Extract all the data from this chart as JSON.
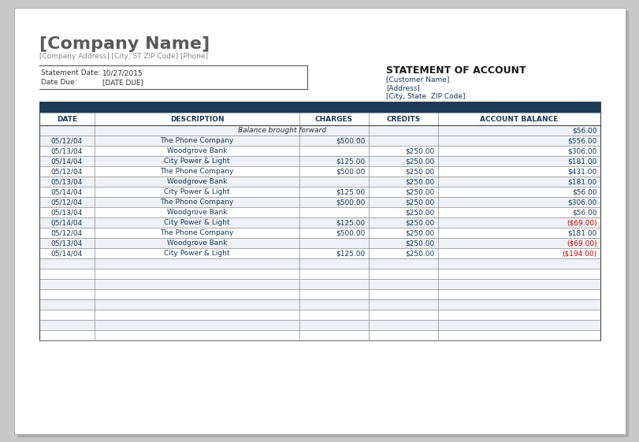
{
  "company_name": "[Company Name]",
  "company_address": "[Company Address] [City, ST ZIP Code] [Phone]",
  "statement_title": "STATEMENT OF ACCOUNT",
  "statement_date_label": "Statement Date:",
  "statement_date_value": "10/27/2015",
  "date_due_label": "Date Due:",
  "date_due_value": "[DATE DUE]",
  "customer_name": "[Customer Name]",
  "address": "[Address]",
  "city_state": "[City, State  ZIP Code]",
  "header_bg": "#1b3a57",
  "col_headers": [
    "DATE",
    "DESCRIPTION",
    "CHARGES",
    "CREDITS",
    "ACCOUNT BALANCE"
  ],
  "balance_forward_label": "Balance brought forward",
  "balance_forward_value": "$56.00",
  "rows": [
    {
      "date": "05/12/04",
      "desc": "The Phone Company",
      "charges": "$500.00",
      "credits": "",
      "balance": "$556.00",
      "neg": false
    },
    {
      "date": "05/13/04",
      "desc": "Woodgrove Bank",
      "charges": "",
      "credits": "$250.00",
      "balance": "$306.00",
      "neg": false
    },
    {
      "date": "05/14/04",
      "desc": "City Power & Light",
      "charges": "$125.00",
      "credits": "$250.00",
      "balance": "$181.00",
      "neg": false
    },
    {
      "date": "05/12/04",
      "desc": "The Phone Company",
      "charges": "$500.00",
      "credits": "$250.00",
      "balance": "$431.00",
      "neg": false
    },
    {
      "date": "05/13/04",
      "desc": "Woodgrove Bank",
      "charges": "",
      "credits": "$250.00",
      "balance": "$181.00",
      "neg": false
    },
    {
      "date": "05/14/04",
      "desc": "City Power & Light",
      "charges": "$125.00",
      "credits": "$250.00",
      "balance": "$56.00",
      "neg": false
    },
    {
      "date": "05/12/04",
      "desc": "The Phone Company",
      "charges": "$500.00",
      "credits": "$250.00",
      "balance": "$306.00",
      "neg": false
    },
    {
      "date": "05/13/04",
      "desc": "Woodgrove Bank",
      "charges": "",
      "credits": "$250.00",
      "balance": "$56.00",
      "neg": false
    },
    {
      "date": "05/14/04",
      "desc": "City Power & Light",
      "charges": "$125.00",
      "credits": "$250.00",
      "balance": "($69.00)",
      "neg": true
    },
    {
      "date": "05/12/04",
      "desc": "The Phone Company",
      "charges": "$500.00",
      "credits": "$250.00",
      "balance": "$181.00",
      "neg": false
    },
    {
      "date": "05/13/04",
      "desc": "Woodgrove Bank",
      "charges": "",
      "credits": "$250.00",
      "balance": "($69.00)",
      "neg": true
    },
    {
      "date": "05/14/04",
      "desc": "City Power & Light",
      "charges": "$125.00",
      "credits": "$250.00",
      "balance": "($194.00)",
      "neg": true
    }
  ],
  "empty_rows": 8,
  "bg_color": "#ffffff",
  "outer_bg": "#c8c8c8",
  "text_color_dark": "#1b3a57",
  "text_color_normal": "#333333",
  "text_color_neg": "#cc0000",
  "text_color_gray": "#808080",
  "text_color_company": "#666666"
}
